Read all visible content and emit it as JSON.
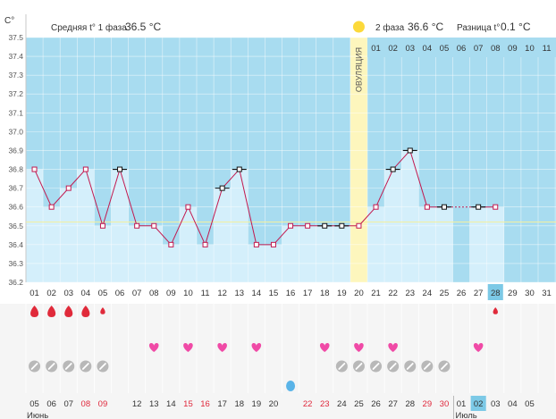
{
  "chart_data": {
    "type": "line",
    "title": "",
    "temp_unit": "C°",
    "ylim": [
      36.2,
      37.5
    ],
    "y_ticks": [
      "37.5",
      "37.4",
      "37.3",
      "37.2",
      "37.1",
      "37.0",
      "36.9",
      "36.8",
      "36.7",
      "36.6",
      "36.5",
      "36.4",
      "36.3",
      "36.2"
    ],
    "coverline": 36.52,
    "header": {
      "phase1_label": "Средняя t° 1 фаза",
      "phase1_value": "36.5 °C",
      "phase2_label": "2 фаза",
      "phase2_value": "36.6 °C",
      "diff_label": "Разница t°",
      "diff_value": "0.1 °C",
      "ovulation_label": "ОВУЛЯЦИЯ"
    },
    "ovulation_day": 20,
    "current_day": "28",
    "cycle_days": [
      "01",
      "02",
      "03",
      "04",
      "05",
      "06",
      "07",
      "08",
      "09",
      "10",
      "11",
      "12",
      "13",
      "14",
      "15",
      "16",
      "17",
      "18",
      "19",
      "20",
      "21",
      "22",
      "23",
      "24",
      "25",
      "26",
      "27",
      "28",
      "29",
      "30",
      "31"
    ],
    "phase2_days": [
      "01",
      "02",
      "03",
      "04",
      "05",
      "06",
      "07",
      "08",
      "09",
      "10",
      "11"
    ],
    "temperatures": [
      36.8,
      36.6,
      36.7,
      36.8,
      36.5,
      36.8,
      36.5,
      36.5,
      36.4,
      36.6,
      36.4,
      36.7,
      36.8,
      36.4,
      36.4,
      36.5,
      36.5,
      36.5,
      36.5,
      36.5,
      36.6,
      36.8,
      36.9,
      36.6,
      36.6,
      null,
      36.6,
      36.6,
      null,
      null,
      null
    ],
    "marker_style": [
      "p",
      "p",
      "p",
      "p",
      "p",
      "b",
      "p",
      "p",
      "p",
      "p",
      "p",
      "b",
      "b",
      "p",
      "p",
      "p",
      "p",
      "b",
      "b",
      "p",
      "p",
      "b",
      "b",
      "p",
      "b",
      null,
      "b",
      "p",
      null,
      null,
      null
    ],
    "dashed_segment": [
      25,
      27
    ],
    "bleeding": [
      {
        "day": 1,
        "size": "large"
      },
      {
        "day": 2,
        "size": "large"
      },
      {
        "day": 3,
        "size": "large"
      },
      {
        "day": 4,
        "size": "large"
      },
      {
        "day": 5,
        "size": "small"
      },
      {
        "day": 28,
        "size": "small"
      }
    ],
    "hearts": [
      8,
      10,
      12,
      14,
      18,
      20,
      22,
      27
    ],
    "pill_days": [
      1,
      2,
      3,
      4,
      5,
      19,
      20,
      21,
      22,
      23,
      24,
      25
    ],
    "drop_days": [
      16
    ],
    "dates": [
      "05",
      "06",
      "07",
      "08",
      "09",
      "12",
      "13",
      "14",
      "15",
      "16",
      "17",
      "18",
      "19",
      "20",
      "22",
      "23",
      "24",
      "25",
      "26",
      "27",
      "28",
      "29",
      "30",
      "01",
      "02",
      "03",
      "04",
      "05"
    ],
    "date_red": [
      false,
      false,
      false,
      true,
      true,
      false,
      false,
      false,
      true,
      true,
      false,
      false,
      false,
      false,
      true,
      true,
      false,
      false,
      false,
      false,
      false,
      true,
      true,
      false,
      false,
      false,
      false,
      false
    ],
    "months": [
      "Июнь",
      "Июль"
    ]
  }
}
